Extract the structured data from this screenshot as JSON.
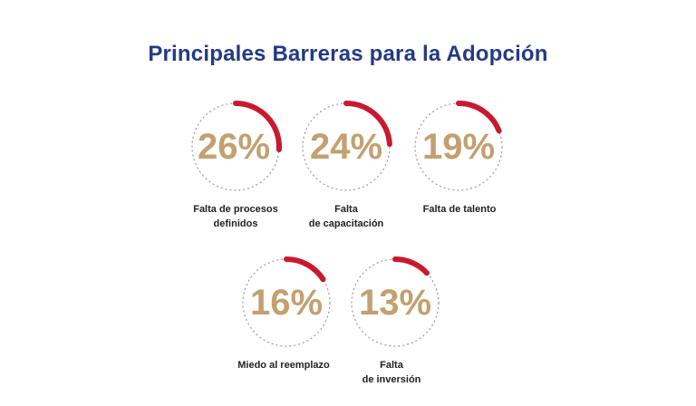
{
  "title": "Principales Barreras para la Adopción",
  "colors": {
    "title": "#243a83",
    "arc": "#c8192e",
    "value": "#c2a070",
    "ring": "#9a9a9a",
    "label": "#222222"
  },
  "chart_data": {
    "type": "radial-progress",
    "title": "Principales Barreras para la Adopción",
    "unit": "%",
    "items": [
      {
        "label": "Falta de procesos\ndefinidos",
        "value": 26,
        "display": "26%"
      },
      {
        "label": "Falta\nde capacitación",
        "value": 24,
        "display": "24%"
      },
      {
        "label": "Falta de talento",
        "value": 19,
        "display": "19%"
      },
      {
        "label": "Miedo al reemplazo",
        "value": 16,
        "display": "16%"
      },
      {
        "label": "Falta\nde inversión",
        "value": 13,
        "display": "13%"
      }
    ]
  }
}
